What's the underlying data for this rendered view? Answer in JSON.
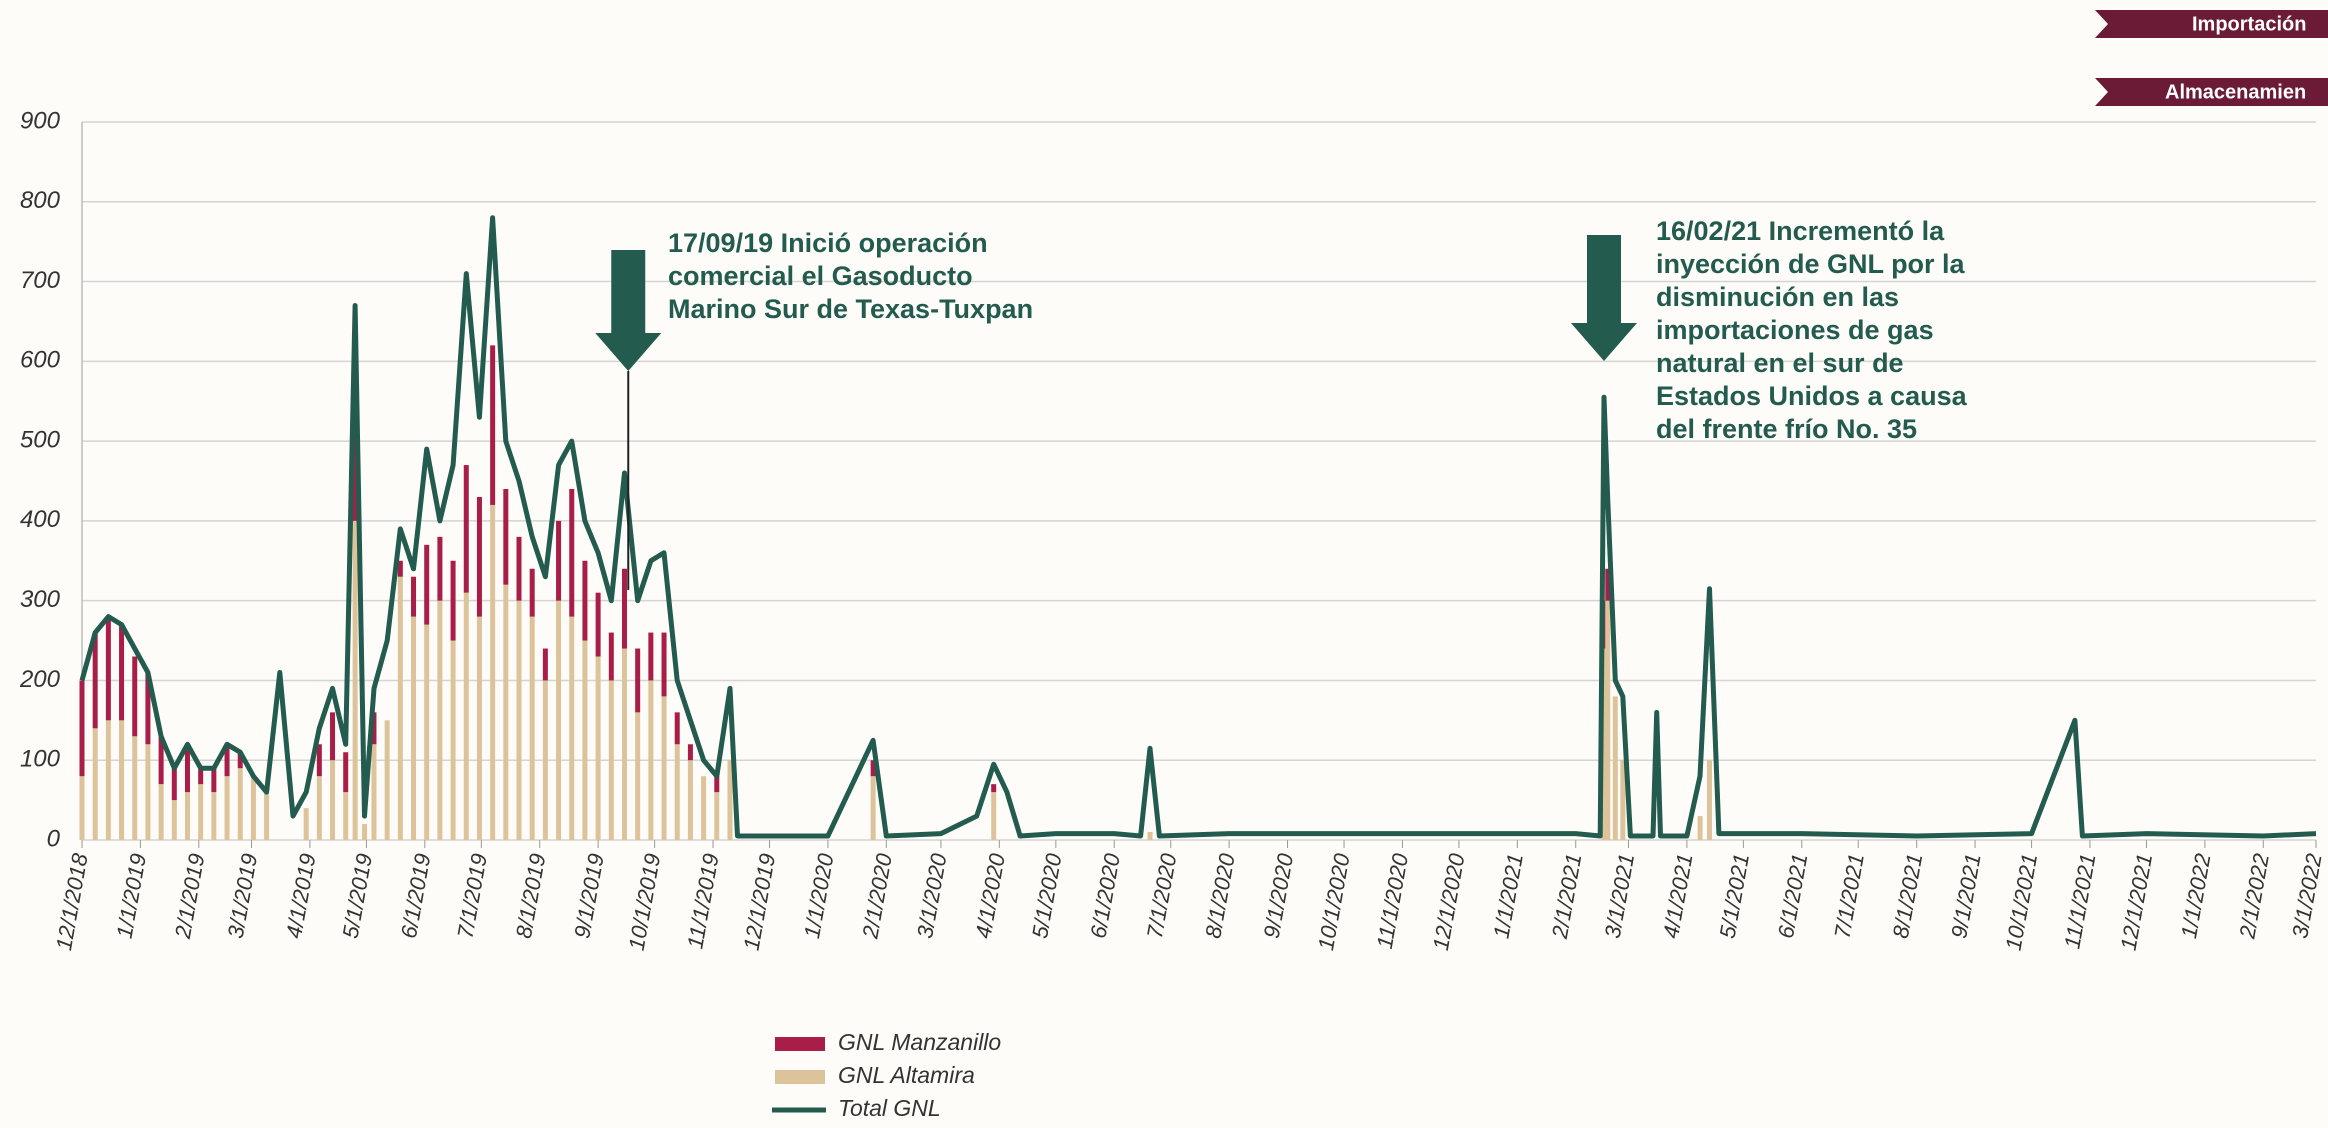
{
  "chart_data": {
    "type": "bar",
    "ylim": [
      0,
      900
    ],
    "yticks": [
      0,
      100,
      200,
      300,
      400,
      500,
      600,
      700,
      800,
      900
    ],
    "grid": true,
    "xlim": [
      "12/1/2018",
      "3/1/2022"
    ],
    "xticks": [
      "12/1/2018",
      "1/1/2019",
      "2/1/2019",
      "3/1/2019",
      "4/1/2019",
      "5/1/2019",
      "6/1/2019",
      "7/1/2019",
      "8/1/2019",
      "9/1/2019",
      "10/1/2019",
      "11/1/2019",
      "12/1/2019",
      "1/1/2020",
      "2/1/2020",
      "3/1/2020",
      "4/1/2020",
      "5/1/2020",
      "6/1/2020",
      "7/1/2020",
      "8/1/2020",
      "9/1/2020",
      "10/1/2020",
      "11/1/2020",
      "12/1/2020",
      "1/1/2021",
      "2/1/2021",
      "3/1/2021",
      "4/1/2021",
      "5/1/2021",
      "6/1/2021",
      "7/1/2021",
      "8/1/2021",
      "9/1/2021",
      "10/1/2021",
      "11/1/2021",
      "12/1/2021",
      "1/1/2022",
      "2/1/2022",
      "3/1/2022"
    ],
    "x": [
      "12/1/2018",
      "12/8/2018",
      "12/15/2018",
      "12/22/2018",
      "12/29/2018",
      "1/5/2019",
      "1/12/2019",
      "1/19/2019",
      "1/26/2019",
      "2/2/2019",
      "2/9/2019",
      "2/16/2019",
      "2/23/2019",
      "3/2/2019",
      "3/9/2019",
      "3/16/2019",
      "3/23/2019",
      "3/30/2019",
      "4/6/2019",
      "4/13/2019",
      "4/20/2019",
      "4/25/2019",
      "4/30/2019",
      "5/5/2019",
      "5/12/2019",
      "5/19/2019",
      "5/26/2019",
      "6/2/2019",
      "6/9/2019",
      "6/16/2019",
      "6/23/2019",
      "6/30/2019",
      "7/7/2019",
      "7/14/2019",
      "7/21/2019",
      "7/28/2019",
      "8/4/2019",
      "8/11/2019",
      "8/18/2019",
      "8/25/2019",
      "9/1/2019",
      "9/8/2019",
      "9/15/2019",
      "9/22/2019",
      "9/29/2019",
      "10/6/2019",
      "10/13/2019",
      "10/20/2019",
      "10/27/2019",
      "11/3/2019",
      "11/10/2019",
      "11/14/2019",
      "12/1/2019",
      "1/1/2020",
      "1/25/2020",
      "2/1/2020",
      "3/1/2020",
      "3/20/2020",
      "3/29/2020",
      "4/5/2020",
      "4/12/2020",
      "5/1/2020",
      "6/1/2020",
      "6/15/2020",
      "6/20/2020",
      "6/25/2020",
      "8/1/2020",
      "10/1/2020",
      "12/1/2020",
      "2/1/2021",
      "2/14/2021",
      "2/16/2021",
      "2/18/2021",
      "2/22/2021",
      "2/26/2021",
      "3/2/2021",
      "3/14/2021",
      "3/16/2021",
      "3/18/2021",
      "4/1/2021",
      "4/8/2021",
      "4/13/2021",
      "4/18/2021",
      "6/1/2021",
      "8/1/2021",
      "10/1/2021",
      "10/24/2021",
      "10/28/2021",
      "12/1/2021",
      "2/1/2022",
      "3/1/2022"
    ],
    "series": [
      {
        "name": "GNL Manzanillo",
        "color": "#a91e48",
        "values": [
          120,
          120,
          130,
          120,
          100,
          90,
          60,
          40,
          60,
          20,
          30,
          40,
          20,
          0,
          0,
          0,
          0,
          0,
          40,
          60,
          50,
          200,
          0,
          40,
          0,
          20,
          50,
          100,
          80,
          100,
          160,
          150,
          200,
          120,
          80,
          60,
          40,
          100,
          160,
          100,
          80,
          60,
          100,
          80,
          60,
          80,
          40,
          20,
          0,
          20,
          0,
          0,
          0,
          0,
          20,
          0,
          0,
          0,
          10,
          0,
          0,
          0,
          0,
          0,
          0,
          0,
          0,
          0,
          0,
          0,
          0,
          60,
          40,
          0,
          0,
          0,
          0,
          0,
          0,
          0,
          0,
          0,
          0,
          0,
          0,
          0,
          0,
          0,
          0,
          0,
          0
        ]
      },
      {
        "name": "GNL Altamira",
        "color": "#dcc39a",
        "values": [
          80,
          140,
          150,
          150,
          130,
          120,
          70,
          50,
          60,
          70,
          60,
          80,
          90,
          80,
          60,
          0,
          0,
          40,
          80,
          100,
          60,
          400,
          20,
          120,
          150,
          330,
          280,
          270,
          300,
          250,
          310,
          280,
          420,
          320,
          300,
          280,
          200,
          300,
          280,
          250,
          230,
          200,
          240,
          160,
          200,
          180,
          120,
          100,
          80,
          60,
          100,
          0,
          0,
          0,
          80,
          0,
          0,
          0,
          60,
          0,
          0,
          0,
          0,
          0,
          10,
          0,
          0,
          0,
          0,
          0,
          0,
          240,
          300,
          180,
          100,
          0,
          0,
          0,
          0,
          0,
          30,
          100,
          0,
          0,
          0,
          0,
          0,
          0,
          0,
          0,
          0
        ]
      },
      {
        "name": "Total GNL",
        "color": "#235b4e",
        "values": [
          200,
          260,
          280,
          270,
          240,
          210,
          130,
          90,
          120,
          90,
          90,
          120,
          110,
          80,
          60,
          210,
          30,
          60,
          140,
          190,
          120,
          670,
          30,
          190,
          250,
          390,
          340,
          490,
          400,
          470,
          710,
          530,
          780,
          500,
          450,
          380,
          330,
          470,
          500,
          400,
          360,
          300,
          460,
          300,
          350,
          360,
          200,
          150,
          100,
          80,
          190,
          5,
          5,
          5,
          125,
          5,
          8,
          30,
          95,
          60,
          5,
          8,
          8,
          5,
          115,
          5,
          8,
          8,
          8,
          8,
          5,
          555,
          425,
          200,
          180,
          5,
          5,
          160,
          5,
          5,
          80,
          315,
          8,
          8,
          5,
          8,
          150,
          5,
          8,
          5,
          8
        ]
      }
    ],
    "annotations": [
      {
        "x": "9/17/2019",
        "lines": [
          "17/09/19 Inició operación",
          "comercial el Gasoducto",
          "Marino Sur de Texas-Tuxpan"
        ]
      },
      {
        "x": "2/16/2021",
        "lines": [
          "16/02/21 Incrementó la",
          "inyección de GNL por la",
          "disminución en las",
          "importaciones de gas",
          "natural en el sur de",
          "Estados Unidos a causa",
          "del frente frío No. 35"
        ]
      }
    ]
  },
  "buttons": [
    "Importación",
    "Almacenamien"
  ]
}
